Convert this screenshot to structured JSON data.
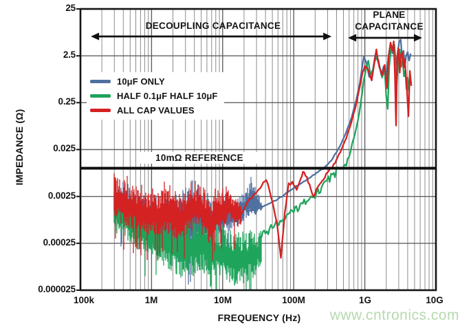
{
  "chart_data": {
    "type": "line",
    "title": "",
    "xlabel": "FREQUENCY (Hz)",
    "ylabel": "IMPEDANCE (Ω)",
    "x_scale": "log",
    "y_scale": "log",
    "xlim": [
      100000.0,
      10000000000.0
    ],
    "ylim": [
      2.5e-05,
      25
    ],
    "grid": {
      "major_color": "#606060",
      "minor_color": "#8c8c8c",
      "vertical_minor": true,
      "horizontal_minor": false
    },
    "x_ticks": [
      {
        "value": 100000.0,
        "label": "100k"
      },
      {
        "value": 1000000.0,
        "label": "1M"
      },
      {
        "value": 10000000.0,
        "label": "10M"
      },
      {
        "value": 100000000.0,
        "label": "100M"
      },
      {
        "value": 1000000000.0,
        "label": "1G"
      },
      {
        "value": 10000000000.0,
        "label": "10G"
      }
    ],
    "y_ticks": [
      {
        "value": 25,
        "label": "25"
      },
      {
        "value": 2.5,
        "label": "2.5"
      },
      {
        "value": 0.25,
        "label": "0.25"
      },
      {
        "value": 0.025,
        "label": "0.025"
      },
      {
        "value": 0.0025,
        "label": "0.0025"
      },
      {
        "value": 0.00025,
        "label": "0.00025"
      },
      {
        "value": 2.5e-05,
        "label": "0.000025"
      }
    ],
    "reference_line": {
      "label": "10mΩ REFERENCE",
      "value": 0.01,
      "color": "#101010"
    },
    "annotations": [
      {
        "label": "DECOUPLING CAPACITANCE",
        "freq_from": 140000.0,
        "freq_to": 340000000.0
      },
      {
        "label_line1": "PLANE",
        "label_line2": "CAPACITANCE",
        "freq_from": 580000000.0,
        "freq_to": 6400000000.0
      }
    ],
    "series": [
      {
        "name": "10μF ONLY",
        "color": "#50709f",
        "jitter": 0.012,
        "jitter_fade_freq": 400000000.0,
        "noise_band": [
          [
            300000.0,
            0.0006,
            0.005
          ],
          [
            500000.0,
            0.0004,
            0.0035
          ],
          [
            1000000.0,
            0.0002,
            0.002
          ],
          [
            2000000.0,
            0.00013,
            0.0025
          ],
          [
            3000000.0,
            0.0001,
            0.004
          ],
          [
            4000000.0,
            0.00012,
            0.0045
          ],
          [
            5000000.0,
            0.0002,
            0.003
          ],
          [
            7000000.0,
            0.00025,
            0.002
          ],
          [
            10000000.0,
            0.0004,
            0.0028
          ],
          [
            14000000.0,
            0.0005,
            0.0016
          ],
          [
            20000000.0,
            0.0007,
            0.0035
          ],
          [
            26000000.0,
            0.0009,
            0.0055
          ],
          [
            32000000.0,
            0.0011,
            0.0028
          ],
          [
            36000000.0,
            0.0013,
            0.0018
          ]
        ],
        "points": [
          [
            22000000.0,
            0.0012
          ],
          [
            30000000.0,
            0.0013
          ],
          [
            40000000.0,
            0.0016
          ],
          [
            60000000.0,
            0.0022
          ],
          [
            85000000.0,
            0.0032
          ],
          [
            120000000.0,
            0.0045
          ],
          [
            160000000.0,
            0.006
          ],
          [
            200000000.0,
            0.0075
          ],
          [
            280000000.0,
            0.0107
          ],
          [
            350000000.0,
            0.016
          ],
          [
            450000000.0,
            0.03
          ],
          [
            550000000.0,
            0.06
          ],
          [
            650000000.0,
            0.12
          ],
          [
            750000000.0,
            0.27
          ],
          [
            850000000.0,
            0.65
          ],
          [
            920000000.0,
            1.5
          ],
          [
            970000000.0,
            2.4
          ],
          [
            1050000000.0,
            1.8
          ],
          [
            1150000000.0,
            0.9
          ],
          [
            1250000000.0,
            0.85
          ],
          [
            1400000000.0,
            2.6
          ],
          [
            1550000000.0,
            2.0
          ],
          [
            1700000000.0,
            1.0
          ],
          [
            1850000000.0,
            1.5
          ],
          [
            2000000000.0,
            0.95
          ],
          [
            2150000000.0,
            2.5
          ],
          [
            2300000000.0,
            4.5
          ],
          [
            2450000000.0,
            2.8
          ],
          [
            2600000000.0,
            4.2
          ],
          [
            2750000000.0,
            1.6
          ],
          [
            2900000000.0,
            2.8
          ],
          [
            3050000000.0,
            5.2
          ],
          [
            3200000000.0,
            5.5
          ],
          [
            3350000000.0,
            2.2
          ],
          [
            3500000000.0,
            3.2
          ],
          [
            3650000000.0,
            1.4
          ],
          [
            3800000000.0,
            2.5
          ],
          [
            4000000000.0,
            3.0
          ],
          [
            4200000000.0,
            2.0
          ],
          [
            4400000000.0,
            2.7
          ]
        ]
      },
      {
        "name": "HALF 0.1μF HALF 10μF",
        "color": "#1fa45c",
        "jitter": 0.09,
        "jitter_fade_freq": 600000000.0,
        "noise_band": [
          [
            300000.0,
            0.0004,
            0.0042
          ],
          [
            500000.0,
            0.00025,
            0.0025
          ],
          [
            1000000.0,
            0.00012,
            0.0012
          ],
          [
            2000000.0,
            6e-05,
            0.0008
          ],
          [
            3000000.0,
            4e-05,
            0.0009
          ],
          [
            5000000.0,
            6e-05,
            0.0011
          ],
          [
            7000000.0,
            5e-05,
            0.0007
          ],
          [
            10000000.0,
            4e-05,
            0.0006
          ],
          [
            15000000.0,
            3e-05,
            0.0005
          ],
          [
            20000000.0,
            3e-05,
            0.00045
          ],
          [
            25000000.0,
            4e-05,
            0.0005
          ],
          [
            30000000.0,
            5e-05,
            0.00045
          ],
          [
            35000000.0,
            9e-05,
            0.0005
          ]
        ],
        "points": [
          [
            35000000.0,
            0.00035
          ],
          [
            50000000.0,
            0.00055
          ],
          [
            70000000.0,
            0.0008
          ],
          [
            100000000.0,
            0.0012
          ],
          [
            140000000.0,
            0.0018
          ],
          [
            200000000.0,
            0.0028
          ],
          [
            280000000.0,
            0.0048
          ],
          [
            350000000.0,
            0.0068
          ],
          [
            450000000.0,
            0.0095
          ],
          [
            500000000.0,
            0.0107
          ],
          [
            600000000.0,
            0.018
          ],
          [
            700000000.0,
            0.045
          ],
          [
            800000000.0,
            0.1
          ],
          [
            880000000.0,
            0.25
          ],
          [
            960000000.0,
            0.7
          ],
          [
            1050000000.0,
            1.5
          ],
          [
            1120000000.0,
            1.85
          ],
          [
            1200000000.0,
            1.0
          ],
          [
            1300000000.0,
            1.3
          ],
          [
            1450000000.0,
            2.4
          ],
          [
            1600000000.0,
            1.5
          ],
          [
            1750000000.0,
            0.85
          ],
          [
            1900000000.0,
            1.3
          ],
          [
            2000000000.0,
            0.35
          ],
          [
            2100000000.0,
            0.19
          ],
          [
            2200000000.0,
            1.5
          ],
          [
            2350000000.0,
            4.2
          ],
          [
            2500000000.0,
            3.0
          ],
          [
            2600000000.0,
            4.4
          ],
          [
            2700000000.0,
            1.2
          ],
          [
            2800000000.0,
            0.6
          ],
          [
            2950000000.0,
            2.4
          ],
          [
            3100000000.0,
            3.4
          ],
          [
            3250000000.0,
            1.5
          ],
          [
            3400000000.0,
            2.2
          ],
          [
            3550000000.0,
            0.9
          ],
          [
            3700000000.0,
            1.3
          ],
          [
            3850000000.0,
            0.5
          ],
          [
            4000000000.0,
            0.9
          ],
          [
            4150000000.0,
            0.45
          ]
        ]
      },
      {
        "name": "ALL CAP VALUES",
        "color": "#d42122",
        "jitter": 0.035,
        "jitter_fade_freq": 400000000.0,
        "noise_band": [
          [
            300000.0,
            0.0008,
            0.0078
          ],
          [
            500000.0,
            0.0005,
            0.005
          ],
          [
            800000.0,
            0.0004,
            0.0032
          ],
          [
            1200000.0,
            0.00035,
            0.0028
          ],
          [
            1600000.0,
            0.0004,
            0.0045
          ],
          [
            2000000.0,
            0.0003,
            0.0028
          ],
          [
            2500000.0,
            0.00025,
            0.0022
          ],
          [
            3200000.0,
            0.0004,
            0.0035
          ],
          [
            4000000.0,
            0.0005,
            0.0042
          ],
          [
            5000000.0,
            0.0004,
            0.0048
          ],
          [
            6000000.0,
            0.0003,
            0.003
          ],
          [
            7000000.0,
            0.0002,
            0.0022
          ],
          [
            8500000.0,
            0.0004,
            0.0035
          ],
          [
            10000000.0,
            0.0005,
            0.003
          ],
          [
            12000000.0,
            0.0008,
            0.0034
          ],
          [
            15000000.0,
            0.0006,
            0.0025
          ],
          [
            18000000.0,
            0.0005,
            0.0018
          ]
        ],
        "points": [
          [
            15000000.0,
            0.002
          ],
          [
            18000000.0,
            0.00095
          ],
          [
            22000000.0,
            0.0018
          ],
          [
            28000000.0,
            0.0028
          ],
          [
            34000000.0,
            0.004
          ],
          [
            41000000.0,
            0.0056
          ],
          [
            50000000.0,
            0.002
          ],
          [
            58000000.0,
            0.0007
          ],
          [
            66000000.0,
            0.00012
          ],
          [
            75000000.0,
            0.0012
          ],
          [
            85000000.0,
            0.0045
          ],
          [
            95000000.0,
            0.005
          ],
          [
            110000000.0,
            0.0036
          ],
          [
            125000000.0,
            0.006
          ],
          [
            140000000.0,
            0.0089
          ],
          [
            160000000.0,
            0.005
          ],
          [
            190000000.0,
            0.0026
          ],
          [
            230000000.0,
            0.0045
          ],
          [
            300000000.0,
            0.008
          ],
          [
            350000000.0,
            0.0107
          ],
          [
            450000000.0,
            0.022
          ],
          [
            550000000.0,
            0.045
          ],
          [
            650000000.0,
            0.1
          ],
          [
            750000000.0,
            0.22
          ],
          [
            850000000.0,
            0.55
          ],
          [
            930000000.0,
            1.1
          ],
          [
            1000000000.0,
            1.5
          ],
          [
            1080000000.0,
            1.35
          ],
          [
            1150000000.0,
            1.1
          ],
          [
            1250000000.0,
            0.75
          ],
          [
            1350000000.0,
            1.6
          ],
          [
            1450000000.0,
            3.4
          ],
          [
            1600000000.0,
            1.4
          ],
          [
            1750000000.0,
            0.95
          ],
          [
            1900000000.0,
            1.6
          ],
          [
            2050000000.0,
            0.5
          ],
          [
            2150000000.0,
            2.2
          ],
          [
            2300000000.0,
            4.8
          ],
          [
            2450000000.0,
            3.2
          ],
          [
            2550000000.0,
            5.2
          ],
          [
            2650000000.0,
            0.9
          ],
          [
            2750000000.0,
            0.08
          ],
          [
            2850000000.0,
            2.2
          ],
          [
            2950000000.0,
            3.6
          ],
          [
            3100000000.0,
            1.1
          ],
          [
            3200000000.0,
            2.6
          ],
          [
            3350000000.0,
            3.0
          ],
          [
            3500000000.0,
            1.4
          ],
          [
            3650000000.0,
            2.2
          ],
          [
            3800000000.0,
            0.9
          ],
          [
            3950000000.0,
            0.35
          ],
          [
            4100000000.0,
            0.13
          ],
          [
            4300000000.0,
            1.2
          ],
          [
            4500000000.0,
            0.6
          ]
        ]
      }
    ]
  },
  "watermark": {
    "text": "www.cntronics.com",
    "color": "#b6d9ae"
  }
}
